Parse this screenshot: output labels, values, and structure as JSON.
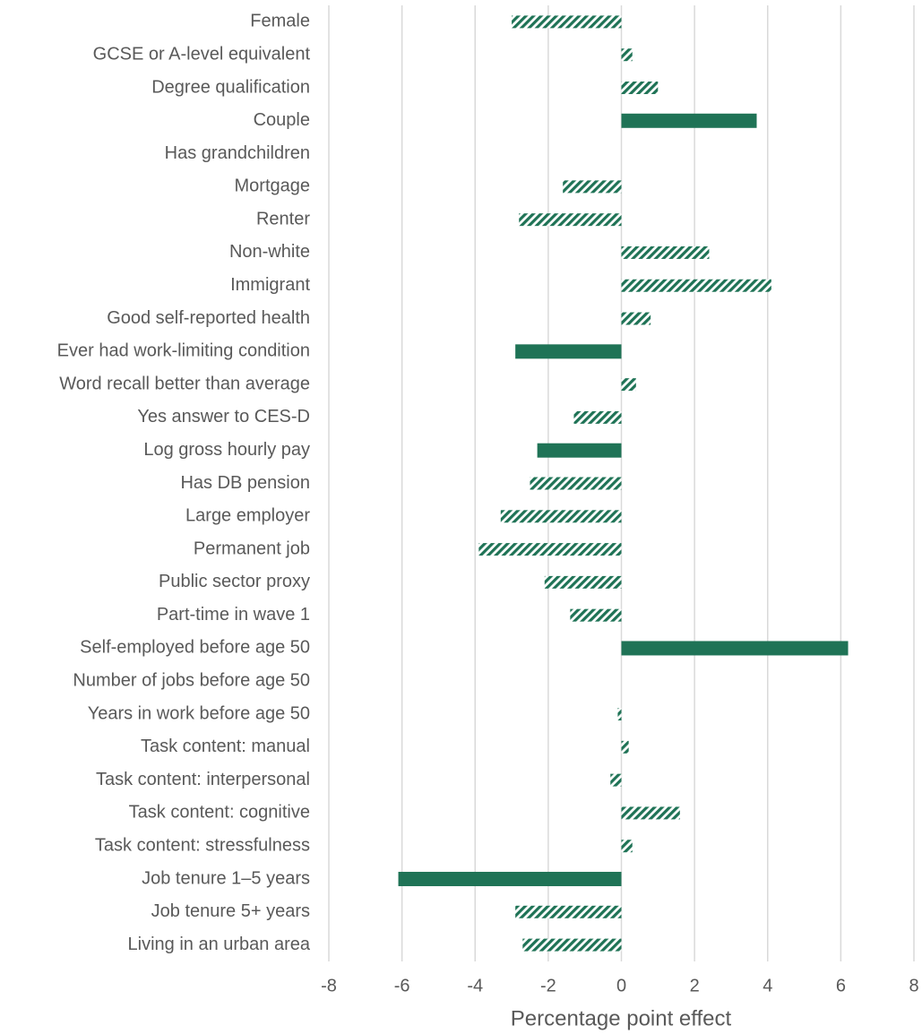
{
  "chart_data": {
    "type": "barh",
    "xlabel": "Percentage point effect",
    "categories": [
      "Female",
      "GCSE or A-level equivalent",
      "Degree qualification",
      "Couple",
      "Has grandchildren",
      "Mortgage",
      "Renter",
      "Non-white",
      "Immigrant",
      "Good self-reported health",
      "Ever had work-limiting condition",
      "Word recall better than average",
      "Yes answer to CES-D",
      "Log gross hourly pay",
      "Has DB pension",
      "Large employer",
      "Permanent job",
      "Public sector proxy",
      "Part-time in wave 1",
      "Self-employed before age 50",
      "Number of jobs before age 50",
      "Years in work before age 50",
      "Task content: manual",
      "Task content: interpersonal",
      "Task content: cognitive",
      "Task content: stressfulness",
      "Job tenure 1–5 years",
      "Job tenure 5+ years",
      "Living in an urban area"
    ],
    "values": [
      -3.0,
      0.3,
      1.0,
      3.7,
      0,
      -1.6,
      -2.8,
      2.4,
      4.1,
      0.8,
      -2.9,
      0.4,
      -1.3,
      -2.3,
      -2.5,
      -3.3,
      -3.9,
      -2.1,
      -1.4,
      6.2,
      0,
      -0.1,
      0.2,
      -0.3,
      1.6,
      0.3,
      -6.1,
      -2.9,
      -2.7
    ],
    "fill_styles": [
      "hatched",
      "hatched",
      "hatched",
      "solid",
      "hatched",
      "hatched",
      "hatched",
      "hatched",
      "hatched",
      "hatched",
      "solid",
      "hatched",
      "hatched",
      "solid",
      "hatched",
      "hatched",
      "hatched",
      "hatched",
      "hatched",
      "solid",
      "hatched",
      "hatched",
      "hatched",
      "hatched",
      "hatched",
      "hatched",
      "solid",
      "hatched",
      "hatched"
    ],
    "color": "#1f7356",
    "xlim": [
      -8,
      8
    ],
    "xticks": [
      -8,
      -6,
      -4,
      -2,
      0,
      2,
      4,
      6,
      8
    ],
    "grid": true
  }
}
